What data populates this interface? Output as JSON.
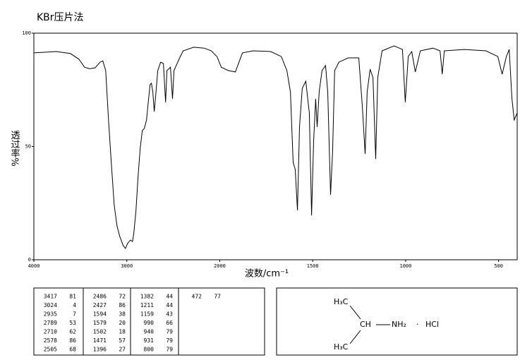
{
  "chart_data": {
    "type": "line",
    "title": "KBr压片法",
    "x_label": "波数/cm⁻¹",
    "y_label": "透过率%",
    "xlim": [
      4000,
      400
    ],
    "xticks": [
      4000,
      3000,
      2000,
      1500,
      1000,
      500
    ],
    "ylim": [
      0,
      100
    ],
    "yticks": [
      0,
      50,
      100
    ],
    "color": "#000000",
    "x": [
      4000,
      3758,
      3606,
      3515,
      3455,
      3400,
      3341,
      3288,
      3258,
      3227,
      3197,
      3167,
      3136,
      3106,
      3076,
      3038,
      3015,
      2992,
      2962,
      2939,
      2924,
      2902,
      2879,
      2856,
      2833,
      2811,
      2788,
      2773,
      2750,
      2735,
      2720,
      2705,
      2689,
      2667,
      2636,
      2606,
      2583,
      2568,
      2530,
      2508,
      2492,
      2432,
      2394,
      2280,
      2167,
      2091,
      2030,
      1992,
      1954,
      1916,
      1878,
      1821,
      1726,
      1669,
      1639,
      1620,
      1605,
      1594,
      1582,
      1571,
      1556,
      1537,
      1518,
      1506,
      1495,
      1484,
      1476,
      1465,
      1450,
      1431,
      1419,
      1404,
      1393,
      1382,
      1359,
      1309,
      1252,
      1233,
      1218,
      1207,
      1191,
      1176,
      1161,
      1150,
      1127,
      1062,
      1017,
      1002,
      986,
      967,
      948,
      937,
      921,
      853,
      815,
      803,
      792,
      682,
      568,
      504,
      481,
      458,
      443,
      428,
      416,
      400
    ],
    "values": [
      91.3,
      91.9,
      91,
      88.5,
      85,
      84.3,
      84.7,
      87.2,
      87.8,
      83.5,
      61.7,
      43,
      24.3,
      15,
      10.3,
      6.2,
      5,
      7.2,
      8.7,
      8.1,
      11.8,
      21.2,
      36.8,
      49.2,
      57,
      58,
      61.7,
      67.9,
      77.3,
      77.9,
      74.1,
      65.4,
      72.6,
      83.5,
      87.2,
      86.6,
      69.5,
      83.5,
      85,
      71,
      83.5,
      89.1,
      92.2,
      93.8,
      93.4,
      92.2,
      89.7,
      85,
      83.5,
      82.9,
      91.3,
      92.2,
      91.9,
      89.7,
      83.5,
      74.1,
      43,
      39.9,
      21.8,
      58.6,
      75.7,
      78.8,
      64.8,
      19.6,
      52.3,
      71,
      58.6,
      74.1,
      83.5,
      85.7,
      74.1,
      28.7,
      47.7,
      83.5,
      87.2,
      89.1,
      89.1,
      67.9,
      46.7,
      74.1,
      84.1,
      80.4,
      44.5,
      80.4,
      92.2,
      94.4,
      92.8,
      69.5,
      89.7,
      91.9,
      82.9,
      86.6,
      92.2,
      93.4,
      92.2,
      81.9,
      92.2,
      92.8,
      92.2,
      89.7,
      81.9,
      89.7,
      92.8,
      71,
      61.7,
      64.8
    ]
  },
  "peak_table": [
    [
      3417,
      81
    ],
    [
      3024,
      4
    ],
    [
      2935,
      7
    ],
    [
      2789,
      53
    ],
    [
      2710,
      62
    ],
    [
      2578,
      86
    ],
    [
      2505,
      68
    ],
    [
      2486,
      72
    ],
    [
      2427,
      86
    ],
    [
      1594,
      38
    ],
    [
      1579,
      20
    ],
    [
      1502,
      18
    ],
    [
      1471,
      57
    ],
    [
      1396,
      27
    ],
    [
      1382,
      44
    ],
    [
      1211,
      44
    ],
    [
      1159,
      43
    ],
    [
      990,
      66
    ],
    [
      940,
      79
    ],
    [
      931,
      79
    ],
    [
      800,
      79
    ],
    [
      472,
      77
    ]
  ],
  "structure": {
    "methyl_top": "H₃C",
    "methine": "CH",
    "amine": "NH₂",
    "dot": "·",
    "salt": "HCl",
    "methyl_bottom": "H₃C"
  }
}
